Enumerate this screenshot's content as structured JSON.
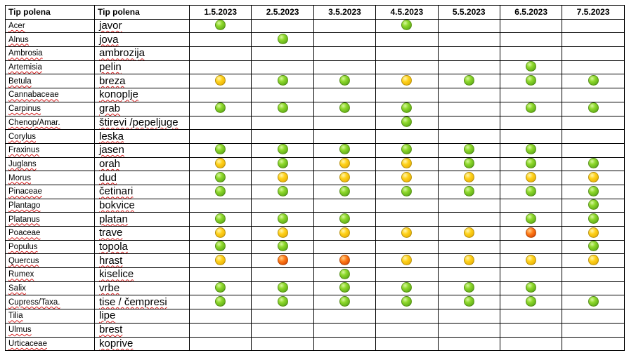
{
  "table": {
    "header_latin": "Tip polena",
    "header_local": "Tip polena",
    "dates": [
      "1.5.2023",
      "2.5.2023",
      "3.5.2023",
      "4.5.2023",
      "5.5.2023",
      "6.5.2023",
      "7.5.2023"
    ],
    "legend_colors": {
      "g": "#7cc520",
      "y": "#ffc800",
      "o": "#ff5a0a"
    },
    "rows": [
      {
        "latin": "Acer",
        "local": "javor",
        "levels": [
          "g",
          "",
          "",
          "g",
          "",
          "",
          ""
        ]
      },
      {
        "latin": "Alnus",
        "local": "jova",
        "levels": [
          "",
          "g",
          "",
          "",
          "",
          "",
          ""
        ]
      },
      {
        "latin": "Ambrosia",
        "local": "ambrozija",
        "levels": [
          "",
          "",
          "",
          "",
          "",
          "",
          ""
        ]
      },
      {
        "latin": "Artemisia",
        "local": "pelin",
        "levels": [
          "",
          "",
          "",
          "",
          "",
          "g",
          ""
        ]
      },
      {
        "latin": "Betula",
        "local": "breza",
        "levels": [
          "y",
          "g",
          "g",
          "y",
          "g",
          "g",
          "g"
        ]
      },
      {
        "latin": "Cannabaceae",
        "local": "konoplje",
        "levels": [
          "",
          "",
          "",
          "",
          "",
          "",
          ""
        ]
      },
      {
        "latin": "Carpinus",
        "local": "grab",
        "levels": [
          "g",
          "g",
          "g",
          "g",
          "",
          "g",
          "g"
        ]
      },
      {
        "latin": "Chenop/Amar.",
        "local": "štirevi /pepeljuge",
        "levels": [
          "",
          "",
          "",
          "g",
          "",
          "",
          ""
        ]
      },
      {
        "latin": "Corylus",
        "local": "leska",
        "levels": [
          "",
          "",
          "",
          "",
          "",
          "",
          ""
        ]
      },
      {
        "latin": "Fraxinus",
        "local": "jasen",
        "levels": [
          "g",
          "g",
          "g",
          "g",
          "g",
          "g",
          ""
        ]
      },
      {
        "latin": "Juglans",
        "local": "orah",
        "levels": [
          "y",
          "g",
          "y",
          "y",
          "g",
          "g",
          "g"
        ]
      },
      {
        "latin": "Morus",
        "local": "dud",
        "levels": [
          "g",
          "y",
          "y",
          "y",
          "y",
          "y",
          "y"
        ]
      },
      {
        "latin": "Pinaceae",
        "local": "četinari",
        "levels": [
          "g",
          "g",
          "g",
          "g",
          "g",
          "g",
          "g"
        ]
      },
      {
        "latin": "Plantago",
        "local": "bokvice",
        "levels": [
          "",
          "",
          "",
          "",
          "",
          "",
          "g"
        ]
      },
      {
        "latin": "Platanus",
        "local": "platan",
        "levels": [
          "g",
          "g",
          "g",
          "",
          "",
          "g",
          "g"
        ]
      },
      {
        "latin": "Poaceae",
        "local": "trave",
        "levels": [
          "y",
          "y",
          "y",
          "y",
          "y",
          "o",
          "y"
        ]
      },
      {
        "latin": "Populus",
        "local": "topola",
        "levels": [
          "g",
          "g",
          "",
          "",
          "",
          "",
          "g"
        ]
      },
      {
        "latin": "Quercus",
        "local": "hrast",
        "levels": [
          "y",
          "o",
          "o",
          "y",
          "y",
          "y",
          "y"
        ]
      },
      {
        "latin": "Rumex",
        "local": "kiselice",
        "levels": [
          "",
          "",
          "g",
          "",
          "",
          "",
          ""
        ]
      },
      {
        "latin": "Salix",
        "local": "vrbe",
        "levels": [
          "g",
          "g",
          "g",
          "g",
          "g",
          "g",
          ""
        ]
      },
      {
        "latin": "Cupress/Taxa.",
        "local": "tise / čempresi",
        "levels": [
          "g",
          "g",
          "g",
          "g",
          "g",
          "g",
          "g"
        ]
      },
      {
        "latin": "Tilia",
        "local": "lipe",
        "levels": [
          "",
          "",
          "",
          "",
          "",
          "",
          ""
        ]
      },
      {
        "latin": "Ulmus",
        "local": "brest",
        "levels": [
          "",
          "",
          "",
          "",
          "",
          "",
          ""
        ]
      },
      {
        "latin": "Urticaceae",
        "local": "koprive",
        "levels": [
          "",
          "",
          "",
          "",
          "",
          "",
          ""
        ]
      }
    ]
  }
}
